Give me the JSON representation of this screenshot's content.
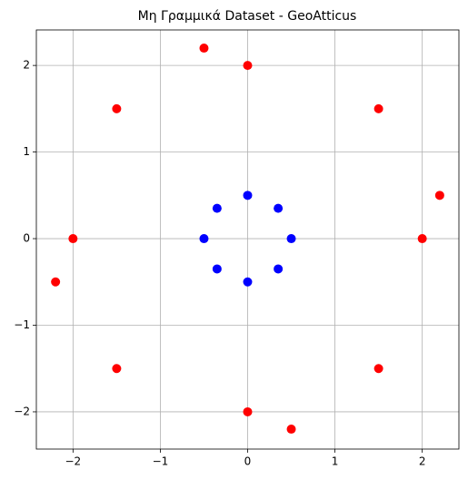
{
  "chart_data": {
    "type": "scatter",
    "title": "Μη Γραμμικά Dataset - GeoAtticus",
    "series": [
      {
        "color": "#ff0000",
        "x": [
          -0.5,
          0,
          -1.5,
          1.5,
          2.2,
          -2,
          2,
          -2.2,
          -1.5,
          1.5,
          0,
          0.5
        ],
        "values": [
          2.2,
          2,
          1.5,
          1.5,
          0.5,
          0,
          0,
          -0.5,
          -1.5,
          -1.5,
          -2,
          -2.2
        ]
      },
      {
        "color": "#0000ff",
        "x": [
          0,
          -0.35,
          0.35,
          -0.5,
          0.5,
          -0.35,
          0.35,
          0
        ],
        "values": [
          0.5,
          0.35,
          0.35,
          0,
          0,
          -0.35,
          -0.35,
          -0.5
        ]
      }
    ],
    "xlim": [
      -2.42,
      2.42
    ],
    "ylim": [
      -2.43,
      2.41
    ],
    "xticks": [
      {
        "value": -2,
        "label": "−2"
      },
      {
        "value": -1,
        "label": "−1"
      },
      0,
      1,
      2
    ],
    "yticks": [
      {
        "value": -2,
        "label": "−2"
      },
      {
        "value": -1,
        "label": "−1"
      },
      0,
      1,
      2
    ],
    "grid": true
  }
}
